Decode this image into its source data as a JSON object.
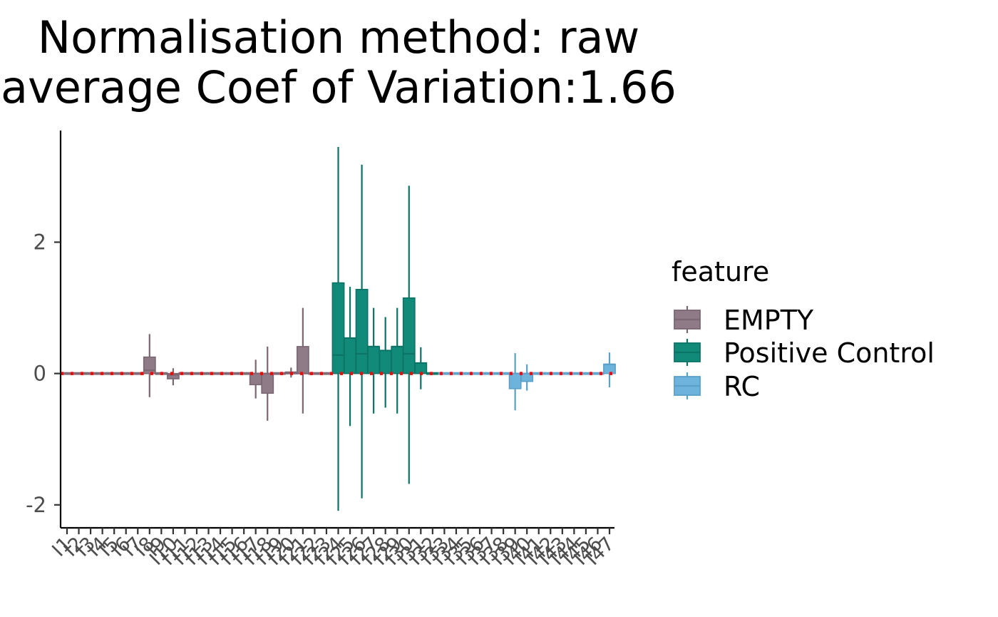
{
  "chart_data": {
    "type": "bar",
    "title": [
      "Normalisation method: raw",
      "average Coef of Variation:1.66"
    ],
    "xlabel": "",
    "ylabel": "",
    "ylim": [
      -2.35,
      3.7
    ],
    "yticks": [
      -2,
      0,
      2
    ],
    "ytick_labels": [
      "-2",
      "0",
      "2"
    ],
    "reference_line": {
      "y": 0,
      "style": "dotted",
      "color": "#ff0000"
    },
    "grid": false,
    "legend": {
      "title": "feature",
      "position": "right",
      "entries": [
        {
          "name": "EMPTY",
          "color": "#8f7b88",
          "edge": "#7a6772"
        },
        {
          "name": "Positive Control",
          "color": "#118a7a",
          "edge": "#0b7466"
        },
        {
          "name": "RC",
          "color": "#6db3db",
          "edge": "#5aa0c8"
        }
      ]
    },
    "categories": [
      "I1",
      "I2",
      "I3",
      "I4",
      "I5",
      "I6",
      "I7",
      "I8",
      "I9",
      "I10",
      "I11",
      "I12",
      "I13",
      "I14",
      "I15",
      "I16",
      "I17",
      "I18",
      "I19",
      "I20",
      "I21",
      "I22",
      "I23",
      "I24",
      "I25",
      "I26",
      "I27",
      "I28",
      "I29",
      "I30",
      "I31",
      "I32",
      "I33",
      "I34",
      "I35",
      "I36",
      "I37",
      "I38",
      "I39",
      "I40",
      "I41",
      "I42",
      "I43",
      "I44",
      "I45",
      "I46",
      "I47"
    ],
    "x_tick_labels_legible": false,
    "groups": [
      "EMPTY",
      "EMPTY",
      "EMPTY",
      "EMPTY",
      "EMPTY",
      "EMPTY",
      "EMPTY",
      "EMPTY",
      "EMPTY",
      "EMPTY",
      "EMPTY",
      "EMPTY",
      "EMPTY",
      "EMPTY",
      "EMPTY",
      "EMPTY",
      "EMPTY",
      "EMPTY",
      "EMPTY",
      "EMPTY",
      "EMPTY",
      "EMPTY",
      "EMPTY",
      "Positive Control",
      "Positive Control",
      "Positive Control",
      "Positive Control",
      "Positive Control",
      "Positive Control",
      "Positive Control",
      "Positive Control",
      "Positive Control",
      "RC",
      "RC",
      "RC",
      "RC",
      "RC",
      "RC",
      "RC",
      "RC",
      "RC",
      "RC",
      "RC",
      "RC",
      "RC",
      "RC",
      "RC"
    ],
    "values": [
      0,
      0,
      0,
      0,
      0,
      0,
      0,
      0.25,
      0,
      -0.08,
      0,
      0,
      0,
      0,
      0,
      0,
      -0.17,
      -0.3,
      0,
      0.02,
      0.41,
      0,
      0,
      1.38,
      0.54,
      1.28,
      0.41,
      0.35,
      0.41,
      1.15,
      0.16,
      0,
      0,
      0,
      0,
      0,
      0,
      0,
      -0.23,
      -0.12,
      0,
      0,
      0,
      0,
      0,
      0,
      0.14
    ],
    "medians": [
      0,
      0,
      0,
      0,
      0,
      0,
      0,
      0.05,
      0,
      -0.02,
      0,
      0,
      0,
      0,
      0,
      0,
      0,
      0,
      0,
      0.02,
      0,
      0,
      0,
      0.28,
      0.54,
      0.3,
      0.41,
      0.35,
      0.41,
      0.3,
      0.16,
      0,
      0,
      0,
      0,
      0,
      0,
      0,
      0,
      0,
      0,
      0,
      0,
      0,
      0,
      0,
      0.14
    ],
    "err_low": [
      0,
      0,
      0,
      0,
      0,
      0,
      0,
      -0.36,
      0,
      -0.18,
      0,
      0,
      0,
      0,
      0,
      0,
      -0.38,
      -0.72,
      0,
      -0.06,
      -0.61,
      0,
      0,
      -2.09,
      -0.8,
      -1.9,
      -0.61,
      -0.52,
      -0.61,
      -1.68,
      -0.24,
      0,
      0,
      0,
      0,
      0,
      0,
      0,
      -0.56,
      -0.26,
      0,
      0,
      0,
      0,
      0,
      0,
      -0.21
    ],
    "err_high": [
      0,
      0,
      0,
      0,
      0,
      0,
      0,
      0.6,
      0,
      0.08,
      0,
      0,
      0,
      0,
      0,
      0,
      0.21,
      0.41,
      0,
      0.09,
      1.0,
      0,
      0,
      3.45,
      1.32,
      3.18,
      1.0,
      0.86,
      1.0,
      2.86,
      0.4,
      0,
      0,
      0,
      0,
      0,
      0,
      0,
      0.31,
      0.14,
      0,
      0,
      0,
      0,
      0,
      0,
      0.32
    ]
  }
}
